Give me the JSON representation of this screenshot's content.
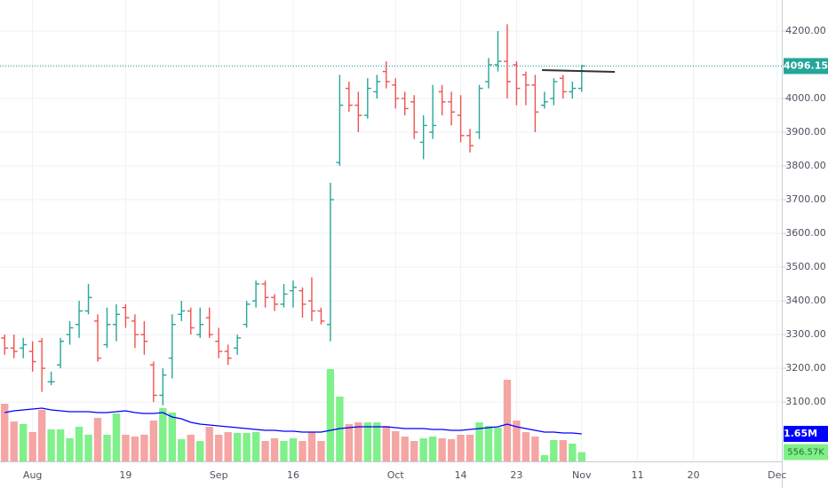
{
  "chart_data": {
    "type": "ohlc",
    "categories": [
      null,
      null,
      null,
      "Aug",
      null,
      null,
      null,
      null,
      null,
      null,
      null,
      null,
      null,
      "19",
      null,
      null,
      null,
      null,
      null,
      null,
      null,
      null,
      null,
      "Sep",
      null,
      null,
      null,
      null,
      null,
      null,
      null,
      "16",
      null,
      null,
      null,
      null,
      null,
      null,
      null,
      null,
      null,
      null,
      "Oct",
      null,
      null,
      null,
      null,
      null,
      null,
      "14",
      null,
      null,
      null,
      null,
      null,
      "23",
      null,
      null,
      null,
      null,
      null,
      null,
      "Nov",
      null,
      null,
      null,
      null,
      null,
      "11",
      null,
      null,
      null,
      null,
      null,
      "20",
      null,
      null,
      null,
      null,
      null,
      null,
      null,
      null,
      "Dec"
    ],
    "open": [
      3290,
      3260,
      3260,
      3250,
      3280,
      3160,
      3210,
      3300,
      3330,
      3370,
      3340,
      3270,
      3330,
      3380,
      3340,
      3300,
      3210,
      3120,
      3230,
      3360,
      3370,
      3300,
      3350,
      3280,
      3250,
      3260,
      3330,
      3400,
      3450,
      3410,
      3390,
      3430,
      3430,
      3400,
      3370,
      3330,
      3810,
      4030,
      3980,
      3950,
      4020,
      4080,
      4040,
      4000,
      3990,
      3870,
      3900,
      4020,
      3990,
      3950,
      3890,
      3900,
      4050,
      4100,
      4110,
      4100,
      4070,
      4040,
      3980,
      4000,
      4060,
      4020,
      4030,
      null,
      null,
      null,
      null,
      null,
      null,
      null,
      null,
      null,
      null,
      null,
      null,
      null,
      null,
      null,
      null,
      null,
      null,
      null,
      null,
      null
    ],
    "high": [
      3300,
      3300,
      3290,
      3280,
      3290,
      3190,
      3290,
      3340,
      3400,
      3450,
      3360,
      3380,
      3390,
      3390,
      3360,
      3340,
      3220,
      3200,
      3360,
      3400,
      3380,
      3380,
      3380,
      3320,
      3270,
      3300,
      3400,
      3460,
      3460,
      3420,
      3450,
      3460,
      3440,
      3470,
      3380,
      3750,
      4070,
      4050,
      4020,
      4060,
      4070,
      4110,
      4060,
      4020,
      4010,
      3950,
      4040,
      4040,
      4020,
      4010,
      3910,
      4040,
      4120,
      4200,
      4220,
      4110,
      4080,
      4070,
      4020,
      4060,
      4070,
      4050,
      4100,
      null,
      null,
      null,
      null,
      null,
      null,
      null,
      null,
      null,
      null,
      null,
      null,
      null,
      null,
      null,
      null,
      null,
      null,
      null,
      null,
      null
    ],
    "low": [
      3240,
      3230,
      3230,
      3190,
      3130,
      3150,
      3200,
      3270,
      3290,
      3360,
      3220,
      3260,
      3280,
      3320,
      3260,
      3240,
      3100,
      3090,
      3170,
      3340,
      3300,
      3290,
      3290,
      3230,
      3210,
      3240,
      3320,
      3380,
      3380,
      3370,
      3380,
      3380,
      3350,
      3340,
      3330,
      3280,
      3800,
      3960,
      3900,
      3940,
      4000,
      4030,
      3970,
      3950,
      3880,
      3820,
      3880,
      3950,
      3920,
      3870,
      3840,
      3880,
      4030,
      4080,
      4000,
      3980,
      3980,
      3900,
      3970,
      3980,
      4000,
      4000,
      4020,
      null,
      null,
      null,
      null,
      null,
      null,
      null,
      null,
      null,
      null,
      null,
      null,
      null,
      null,
      null,
      null,
      null,
      null,
      null,
      null,
      null
    ],
    "close": [
      3260,
      3250,
      3270,
      3220,
      3200,
      3160,
      3280,
      3320,
      3370,
      3410,
      3230,
      3330,
      3360,
      3350,
      3300,
      3280,
      3120,
      3180,
      3330,
      3370,
      3320,
      3330,
      3300,
      3250,
      3230,
      3290,
      3390,
      3450,
      3410,
      3390,
      3420,
      3440,
      3390,
      3370,
      3340,
      3700,
      3980,
      3980,
      3950,
      4030,
      4050,
      4050,
      4000,
      3970,
      3900,
      3920,
      3920,
      3990,
      3960,
      3890,
      3860,
      4030,
      4100,
      4110,
      4050,
      4030,
      4040,
      3960,
      3990,
      4050,
      4020,
      4030,
      4096.15,
      null,
      null,
      null,
      null,
      null,
      null,
      null,
      null,
      null,
      null,
      null,
      null,
      null,
      null,
      null,
      null,
      null,
      null,
      null,
      null,
      null
    ],
    "last_price_label": "4096.15",
    "up_color": "#26a69a",
    "down_color": "#ef5350",
    "ylim": [
      2924,
      4292
    ],
    "yticks": [
      {
        "value": 3100,
        "label": "3100.00"
      },
      {
        "value": 3200,
        "label": "3200.00"
      },
      {
        "value": 3300,
        "label": "3300.00"
      },
      {
        "value": 3400,
        "label": "3400.00"
      },
      {
        "value": 3500,
        "label": "3500.00"
      },
      {
        "value": 3600,
        "label": "3600.00"
      },
      {
        "value": 3700,
        "label": "3700.00"
      },
      {
        "value": 3800,
        "label": "3800.00"
      },
      {
        "value": 3900,
        "label": "3900.00"
      },
      {
        "value": 4000,
        "label": "4000.00"
      },
      {
        "value": 4100,
        "label": "4100.00"
      },
      {
        "value": 4200,
        "label": "4200.00"
      }
    ],
    "grid": true,
    "volume": {
      "axis": "y2",
      "up_color": "#7ff08a",
      "down_color": "#f5a5a3",
      "last_label": "556.57K",
      "values": [
        3457000,
        2394000,
        2234000,
        1755000,
        3085000,
        1915000,
        1915000,
        1383000,
        2074000,
        1596000,
        2606000,
        1596000,
        2872000,
        1596000,
        1489000,
        1596000,
        2447000,
        3191000,
        2926000,
        1330000,
        1596000,
        1223000,
        2074000,
        1596000,
        1755000,
        1702000,
        1702000,
        1755000,
        1223000,
        1383000,
        1223000,
        1383000,
        1223000,
        1755000,
        1223000,
        5532000,
        3883000,
        2234000,
        2340000,
        2340000,
        2340000,
        2128000,
        1809000,
        1489000,
        1223000,
        1383000,
        1489000,
        1383000,
        1330000,
        1596000,
        1596000,
        2340000,
        2128000,
        2021000,
        4894000,
        2447000,
        1755000,
        1489000,
        372000,
        1277000,
        1277000,
        1064000,
        556570,
        null,
        null,
        null,
        null,
        null,
        null,
        null,
        null,
        null,
        null,
        null,
        null,
        null,
        null,
        null,
        null,
        null,
        null,
        null,
        null,
        null
      ]
    },
    "volume_ma": {
      "axis": "y2",
      "color": "#0000ff",
      "last_label": "1.65M",
      "values": [
        2926000,
        3032000,
        3085000,
        3138000,
        3191000,
        3085000,
        3032000,
        2979000,
        2979000,
        2979000,
        2926000,
        2926000,
        2979000,
        3032000,
        2926000,
        2872000,
        2872000,
        2926000,
        2660000,
        2553000,
        2340000,
        2234000,
        2181000,
        2128000,
        2074000,
        2021000,
        1968000,
        1915000,
        1862000,
        1862000,
        1809000,
        1809000,
        1755000,
        1755000,
        1755000,
        1862000,
        1968000,
        2021000,
        2074000,
        2074000,
        2074000,
        2074000,
        2021000,
        1968000,
        1968000,
        1968000,
        1915000,
        1915000,
        1862000,
        1862000,
        1915000,
        1968000,
        2021000,
        2074000,
        2234000,
        2074000,
        1968000,
        1862000,
        1755000,
        1755000,
        1702000,
        1702000,
        1650000,
        null,
        null,
        null,
        null,
        null,
        null,
        null,
        null,
        null,
        null,
        null,
        null,
        null,
        null,
        null,
        null,
        null,
        null,
        null,
        null,
        null
      ]
    },
    "y2lim": [
      0,
      27660000
    ]
  }
}
